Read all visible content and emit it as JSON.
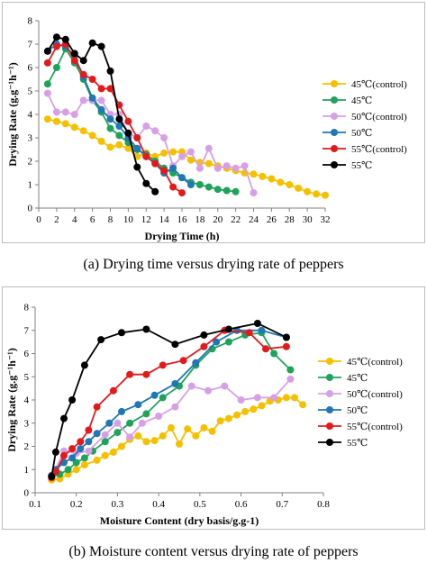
{
  "colors": {
    "45C_control": "#f5c000",
    "45C": "#1fa35b",
    "50C_control": "#d7a0e6",
    "50C": "#1f77b4",
    "55C_control": "#e31a1c",
    "55C": "#000000",
    "axis": "#808080"
  },
  "captions": {
    "a": "(a) Drying time versus drying rate of peppers",
    "b": "(b) Moisture content versus drying rate of peppers"
  },
  "chart_data": [
    {
      "type": "line",
      "xlabel": "Drying Time (h)",
      "ylabel": "Drying Rate (g.g⁻¹h⁻¹)",
      "xlim": [
        0,
        32
      ],
      "ylim": [
        0,
        8
      ],
      "xticks": [
        "0",
        "2",
        "4",
        "6",
        "8",
        "10",
        "12",
        "14",
        "16",
        "18",
        "20",
        "22",
        "24",
        "26",
        "28",
        "30",
        "32"
      ],
      "yticks": [
        "0",
        "1",
        "2",
        "3",
        "4",
        "5",
        "6",
        "7",
        "8"
      ],
      "grid": false,
      "legend_position": "right",
      "series": [
        {
          "name": "45℃(control)",
          "color_key": "45C_control",
          "x": [
            1,
            2,
            3,
            4,
            5,
            6,
            7,
            8,
            9,
            10,
            11,
            12,
            13,
            14,
            15,
            16,
            17,
            18,
            19,
            20,
            21,
            22,
            23,
            24,
            25,
            26,
            27,
            28,
            29,
            30,
            31,
            32
          ],
          "y": [
            3.8,
            3.7,
            3.6,
            3.45,
            3.3,
            3.1,
            2.85,
            2.6,
            2.7,
            2.55,
            2.2,
            2.35,
            2.2,
            2.35,
            2.4,
            2.4,
            2.05,
            1.95,
            1.9,
            1.8,
            1.7,
            1.6,
            1.5,
            1.45,
            1.35,
            1.25,
            1.1,
            1.0,
            0.85,
            0.7,
            0.6,
            0.55
          ]
        },
        {
          "name": "45℃",
          "color_key": "45C",
          "x": [
            1,
            2,
            3,
            4,
            5,
            6,
            7,
            8,
            9,
            10,
            11,
            12,
            13,
            14,
            15,
            16,
            17,
            18,
            19,
            20,
            21,
            22
          ],
          "y": [
            5.3,
            6.0,
            6.8,
            6.2,
            5.5,
            4.6,
            4.1,
            3.4,
            3.1,
            2.8,
            2.5,
            2.3,
            2.0,
            1.7,
            1.5,
            1.3,
            1.1,
            1.0,
            0.9,
            0.8,
            0.75,
            0.7
          ]
        },
        {
          "name": "50℃(control)",
          "color_key": "50C_control",
          "x": [
            1,
            2,
            3,
            4,
            5,
            6,
            7,
            8,
            9,
            10,
            11,
            12,
            13,
            14,
            15,
            16,
            17,
            18,
            19,
            20,
            21,
            22,
            23,
            24
          ],
          "y": [
            4.9,
            4.1,
            4.1,
            4.0,
            4.6,
            4.6,
            4.6,
            4.0,
            4.0,
            3.2,
            3.0,
            3.5,
            3.3,
            3.0,
            1.8,
            2.2,
            2.4,
            1.7,
            2.55,
            1.7,
            1.8,
            1.7,
            1.8,
            0.65
          ]
        },
        {
          "name": "50℃",
          "color_key": "50C",
          "x": [
            1,
            2,
            3,
            4,
            5,
            6,
            7,
            8,
            9,
            10,
            11,
            12,
            13,
            14,
            15,
            16,
            17
          ],
          "y": [
            6.7,
            7.0,
            6.9,
            6.5,
            5.6,
            4.7,
            4.2,
            3.8,
            3.5,
            3.0,
            2.55,
            2.2,
            1.9,
            1.5,
            1.7,
            1.3,
            1.0
          ]
        },
        {
          "name": "55℃(control)",
          "color_key": "55C_control",
          "x": [
            1,
            2,
            3,
            4,
            5,
            6,
            7,
            8,
            9,
            10,
            11,
            12,
            13,
            14,
            15,
            16
          ],
          "y": [
            6.2,
            6.9,
            7.0,
            6.3,
            5.7,
            5.5,
            5.1,
            5.1,
            4.4,
            3.7,
            3.0,
            2.2,
            1.9,
            1.6,
            0.9,
            0.65
          ]
        },
        {
          "name": "55℃",
          "color_key": "55C",
          "x": [
            1,
            2,
            3,
            4,
            5,
            6,
            7,
            8,
            9,
            10,
            11,
            12,
            13
          ],
          "y": [
            6.7,
            7.3,
            7.2,
            6.6,
            6.3,
            7.05,
            6.9,
            5.85,
            3.8,
            3.2,
            1.75,
            1.05,
            0.7
          ]
        }
      ]
    },
    {
      "type": "line",
      "xlabel": "Moisture Content (dry basis/g.g-1)",
      "ylabel": "Drying Rate (g.g⁻¹h⁻¹)",
      "xlim": [
        0.1,
        0.8
      ],
      "ylim": [
        0,
        8
      ],
      "xticks": [
        "0.1",
        "0.2",
        "0.3",
        "0.4",
        "0.5",
        "0.6",
        "0.7",
        "0.8"
      ],
      "yticks": [
        "0",
        "1",
        "2",
        "3",
        "4",
        "5",
        "6",
        "7",
        "8"
      ],
      "grid": false,
      "legend_position": "right",
      "series": [
        {
          "name": "45℃(control)",
          "color_key": "45C_control",
          "x": [
            0.14,
            0.16,
            0.18,
            0.2,
            0.22,
            0.25,
            0.27,
            0.29,
            0.31,
            0.33,
            0.35,
            0.37,
            0.39,
            0.41,
            0.43,
            0.45,
            0.47,
            0.49,
            0.51,
            0.53,
            0.55,
            0.57,
            0.59,
            0.61,
            0.63,
            0.65,
            0.67,
            0.69,
            0.71,
            0.73,
            0.75
          ],
          "y": [
            0.55,
            0.6,
            0.8,
            1.0,
            1.2,
            1.4,
            1.6,
            1.75,
            2.0,
            2.3,
            2.45,
            2.2,
            2.25,
            2.45,
            2.8,
            2.1,
            2.75,
            2.45,
            2.8,
            2.65,
            3.1,
            3.2,
            3.35,
            3.5,
            3.6,
            3.75,
            3.95,
            4.0,
            4.1,
            4.1,
            3.8
          ]
        },
        {
          "name": "45℃",
          "color_key": "45C",
          "x": [
            0.14,
            0.16,
            0.18,
            0.2,
            0.22,
            0.24,
            0.27,
            0.3,
            0.33,
            0.37,
            0.41,
            0.45,
            0.49,
            0.53,
            0.57,
            0.61,
            0.65,
            0.68,
            0.72
          ],
          "y": [
            0.7,
            0.8,
            1.0,
            1.3,
            1.5,
            1.8,
            2.2,
            2.6,
            3.0,
            3.4,
            4.1,
            4.6,
            5.5,
            6.2,
            6.5,
            6.8,
            6.9,
            6.0,
            5.3
          ]
        },
        {
          "name": "50℃(control)",
          "color_key": "50C_control",
          "x": [
            0.14,
            0.17,
            0.2,
            0.23,
            0.27,
            0.3,
            0.33,
            0.36,
            0.4,
            0.44,
            0.48,
            0.52,
            0.56,
            0.6,
            0.64,
            0.68,
            0.72
          ],
          "y": [
            0.65,
            1.8,
            1.7,
            1.8,
            2.5,
            3.0,
            2.4,
            3.0,
            3.3,
            3.7,
            4.6,
            4.4,
            4.6,
            4.0,
            4.1,
            4.1,
            4.9
          ]
        },
        {
          "name": "50℃",
          "color_key": "50C",
          "x": [
            0.14,
            0.15,
            0.17,
            0.19,
            0.21,
            0.23,
            0.25,
            0.28,
            0.31,
            0.35,
            0.39,
            0.44,
            0.49,
            0.54,
            0.59,
            0.65,
            0.71
          ],
          "y": [
            0.75,
            1.0,
            1.3,
            1.5,
            1.9,
            2.2,
            2.55,
            3.0,
            3.5,
            3.8,
            4.2,
            4.7,
            5.6,
            6.5,
            7.0,
            7.0,
            6.7
          ]
        },
        {
          "name": "55℃(control)",
          "color_key": "55C_control",
          "x": [
            0.14,
            0.15,
            0.17,
            0.19,
            0.21,
            0.23,
            0.25,
            0.29,
            0.33,
            0.37,
            0.41,
            0.46,
            0.51,
            0.56,
            0.62,
            0.66,
            0.71
          ],
          "y": [
            0.65,
            0.9,
            1.6,
            1.9,
            2.2,
            2.7,
            3.7,
            4.4,
            5.1,
            5.1,
            5.5,
            5.7,
            6.3,
            7.0,
            6.9,
            6.2,
            6.3
          ]
        },
        {
          "name": "55℃",
          "color_key": "55C",
          "x": [
            0.14,
            0.15,
            0.17,
            0.19,
            0.22,
            0.26,
            0.31,
            0.37,
            0.44,
            0.51,
            0.57,
            0.64,
            0.71
          ],
          "y": [
            0.7,
            1.75,
            3.2,
            4.0,
            5.5,
            6.6,
            6.9,
            7.05,
            6.4,
            6.8,
            7.05,
            7.3,
            6.7
          ]
        }
      ]
    }
  ]
}
